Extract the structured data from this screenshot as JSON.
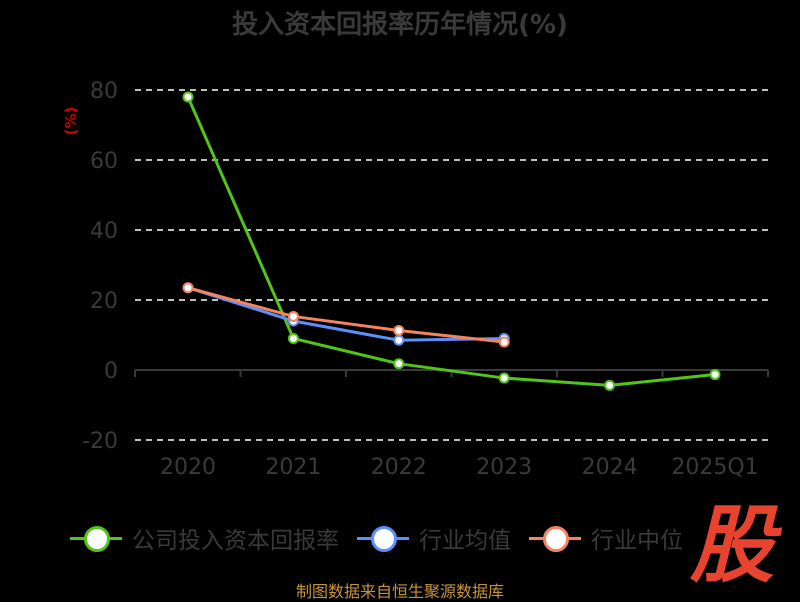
{
  "chart_data": {
    "type": "line",
    "title": "投入资本回报率历年情况(%)",
    "ylabel": "(%)",
    "categories": [
      "2020",
      "2021",
      "2022",
      "2023",
      "2024",
      "2025Q1"
    ],
    "ylim": [
      -20,
      80
    ],
    "yticks": [
      80,
      60,
      40,
      20,
      0,
      -20
    ],
    "grid": true,
    "legend_position": "bottom",
    "series": [
      {
        "name": "公司投入资本回报率",
        "color": "#52c41a",
        "values": [
          78.0,
          9.0,
          1.8,
          -2.3,
          -4.4,
          -1.3
        ]
      },
      {
        "name": "行业均值",
        "color": "#5b8ff9",
        "values": [
          23.5,
          14.0,
          8.5,
          9.0,
          null,
          null
        ]
      },
      {
        "name": "行业中位",
        "color": "#f4845f",
        "values": [
          23.5,
          15.3,
          11.3,
          8.0,
          null,
          null
        ]
      }
    ]
  },
  "logo_text": "股",
  "source": "制图数据来自恒生聚源数据库"
}
